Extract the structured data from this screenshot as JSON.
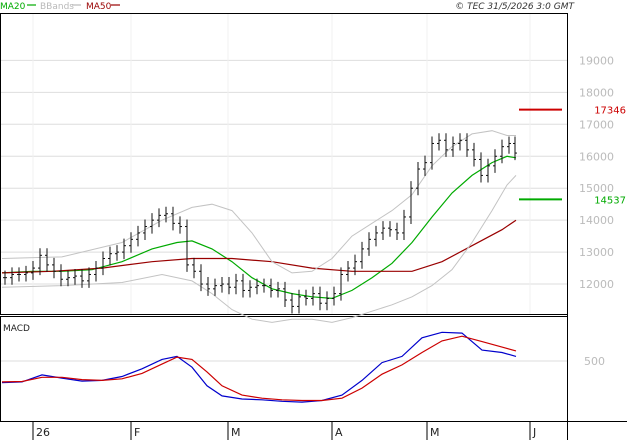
{
  "header": {
    "legend": [
      {
        "label": "MA20",
        "color": "#00aa00"
      },
      {
        "label": "BBands",
        "color": "#b9b9b9"
      },
      {
        "label": "MA50",
        "color": "#990000"
      }
    ],
    "copyright": "© TEC 31/5/2026 3:0 GMT"
  },
  "chart_data": [
    {
      "type": "candlestick",
      "title": "",
      "ylim": [
        11000,
        20000
      ],
      "yticks": [
        12000,
        13000,
        14000,
        15000,
        16000,
        17000,
        18000,
        19000
      ],
      "ytick_labels": [
        "12000",
        "13000",
        "14000",
        "15000",
        "16000",
        "17000",
        "18000",
        "19000"
      ],
      "x_labels": [
        "26",
        "F",
        "M",
        "A",
        "M",
        "J"
      ],
      "grid": true,
      "markers": [
        {
          "label": "17346",
          "value": 17460,
          "color": "#cc0000"
        },
        {
          "label": "14537",
          "value": 14650,
          "color": "#00aa00"
        }
      ],
      "series": [
        {
          "name": "MA20",
          "color": "#00aa00",
          "x": [
            0,
            30,
            60,
            90,
            120,
            150,
            175,
            190,
            210,
            230,
            250,
            270,
            290,
            310,
            330,
            350,
            370,
            390,
            410,
            430,
            450,
            470,
            490,
            505,
            514
          ],
          "y": [
            12350,
            12400,
            12400,
            12450,
            12700,
            13100,
            13300,
            13350,
            13100,
            12700,
            12200,
            11850,
            11700,
            11600,
            11550,
            11800,
            12200,
            12650,
            13300,
            14100,
            14850,
            15400,
            15800,
            16000,
            15950
          ]
        },
        {
          "name": "MA50",
          "color": "#990000",
          "x": [
            0,
            50,
            100,
            150,
            190,
            230,
            270,
            310,
            350,
            380,
            410,
            440,
            470,
            500,
            514
          ],
          "y": [
            12350,
            12400,
            12500,
            12700,
            12800,
            12800,
            12700,
            12500,
            12400,
            12400,
            12400,
            12700,
            13200,
            13700,
            14000
          ]
        },
        {
          "name": "BBands",
          "color": "#c3c3c3",
          "x": [
            0,
            60,
            120,
            160,
            190,
            210,
            230,
            250,
            270,
            290,
            310,
            330,
            350,
            370,
            390,
            410,
            430,
            450,
            470,
            490,
            505,
            514
          ],
          "y": [
            12800,
            12850,
            13300,
            14000,
            14400,
            14500,
            14300,
            13600,
            12700,
            12350,
            12400,
            12800,
            13500,
            13900,
            14300,
            14800,
            15700,
            16300,
            16700,
            16800,
            16650,
            16650
          ]
        },
        {
          "name": "BBands",
          "color": "#c3c3c3",
          "x": [
            0,
            60,
            120,
            160,
            190,
            210,
            230,
            250,
            270,
            290,
            310,
            330,
            350,
            370,
            390,
            410,
            430,
            450,
            470,
            490,
            505,
            514
          ],
          "y": [
            11900,
            11950,
            12050,
            12300,
            12100,
            11700,
            11200,
            10900,
            10800,
            10900,
            10900,
            10800,
            10950,
            11150,
            11350,
            11600,
            11950,
            12450,
            13300,
            14300,
            15100,
            15400
          ]
        },
        {
          "name": "Price",
          "color": "#111111",
          "x": [
            3,
            10,
            17,
            24,
            31,
            38,
            45,
            52,
            59,
            66,
            73,
            80,
            87,
            94,
            101,
            108,
            115,
            122,
            129,
            136,
            143,
            150,
            157,
            164,
            171,
            178,
            185,
            192,
            199,
            206,
            213,
            220,
            227,
            234,
            241,
            248,
            255,
            262,
            269,
            276,
            283,
            290,
            297,
            304,
            311,
            318,
            325,
            332,
            339,
            346,
            353,
            360,
            367,
            374,
            381,
            388,
            395,
            402,
            409,
            416,
            423,
            430,
            437,
            444,
            451,
            458,
            465,
            472,
            479,
            486,
            493,
            500,
            507,
            513
          ],
          "y": [
            12200,
            12300,
            12300,
            12350,
            12500,
            12900,
            12600,
            12400,
            12150,
            12200,
            12250,
            12100,
            12300,
            12500,
            12800,
            12950,
            13000,
            13200,
            13400,
            13600,
            13800,
            14000,
            14150,
            14200,
            13900,
            13800,
            12600,
            12400,
            12000,
            11850,
            11950,
            12000,
            11900,
            12100,
            11800,
            11900,
            11950,
            11950,
            11800,
            11850,
            11500,
            11300,
            11600,
            11550,
            11700,
            11400,
            11550,
            11700,
            12300,
            12500,
            12700,
            13100,
            13400,
            13600,
            13750,
            13700,
            13600,
            14100,
            15000,
            15600,
            15800,
            16400,
            16500,
            16200,
            16400,
            16500,
            16200,
            15900,
            15400,
            15700,
            16000,
            16300,
            16400,
            16100
          ]
        }
      ]
    },
    {
      "type": "line",
      "title": "MACD",
      "ylim": [
        -200,
        1000
      ],
      "yticks": [
        500
      ],
      "ytick_labels": [
        "500"
      ],
      "grid": true,
      "series": [
        {
          "name": "MACD",
          "color": "#0000cc",
          "x": [
            0,
            20,
            40,
            60,
            80,
            100,
            120,
            140,
            160,
            175,
            190,
            205,
            220,
            240,
            260,
            280,
            300,
            320,
            340,
            360,
            380,
            400,
            420,
            440,
            460,
            480,
            500,
            514
          ],
          "y": [
            220,
            230,
            320,
            280,
            240,
            250,
            300,
            400,
            520,
            560,
            420,
            180,
            50,
            10,
            0,
            -20,
            -30,
            -10,
            60,
            250,
            480,
            560,
            800,
            870,
            860,
            640,
            610,
            560
          ]
        },
        {
          "name": "Signal",
          "color": "#cc0000",
          "x": [
            0,
            20,
            40,
            60,
            80,
            100,
            120,
            140,
            160,
            175,
            190,
            205,
            220,
            240,
            260,
            280,
            300,
            320,
            340,
            360,
            380,
            400,
            420,
            440,
            460,
            480,
            500,
            514
          ],
          "y": [
            230,
            235,
            290,
            290,
            260,
            250,
            270,
            340,
            460,
            550,
            520,
            360,
            180,
            60,
            20,
            0,
            -10,
            -10,
            20,
            150,
            330,
            450,
            610,
            760,
            820,
            750,
            680,
            630
          ]
        }
      ]
    }
  ]
}
